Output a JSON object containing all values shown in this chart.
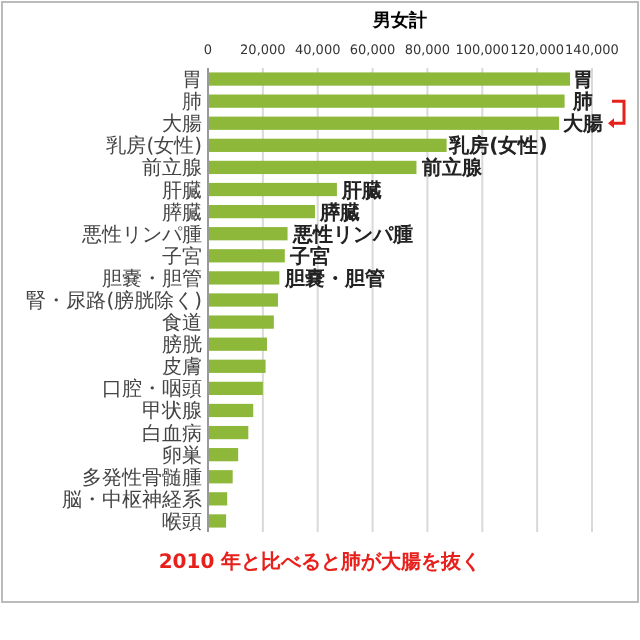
{
  "chart_data": {
    "type": "bar",
    "orientation": "horizontal",
    "title": "男女計",
    "categories": [
      "胃",
      "肺",
      "大腸",
      "乳房(女性)",
      "前立腺",
      "肝臓",
      "膵臓",
      "悪性リンパ腫",
      "子宮",
      "胆嚢・胆管",
      "腎・尿路(膀胱除く)",
      "食道",
      "膀胱",
      "皮膚",
      "口腔・咽頭",
      "甲状腺",
      "白血病",
      "卵巣",
      "多発性骨髄腫",
      "脳・中枢神経系",
      "喉頭"
    ],
    "values": [
      132000,
      130000,
      128000,
      87000,
      76000,
      47000,
      39000,
      29000,
      28000,
      26000,
      25500,
      24000,
      21500,
      21000,
      20000,
      16500,
      14700,
      11000,
      9000,
      7000,
      6600
    ],
    "color": "#8db83a",
    "xlim": [
      0,
      140000
    ],
    "xticks": [
      {
        "value": 0,
        "label": "0"
      },
      {
        "value": 20000,
        "label": "20,000"
      },
      {
        "value": 40000,
        "label": "40,000"
      },
      {
        "value": 60000,
        "label": "60,000"
      },
      {
        "value": 80000,
        "label": "80,000"
      },
      {
        "value": 100000,
        "label": "100,000"
      },
      {
        "value": 120000,
        "label": "120,000"
      },
      {
        "value": 140000,
        "label": "140,000"
      }
    ],
    "grid": "x",
    "annotations": [
      {
        "text": "胃",
        "x": 133000,
        "y": "胃"
      },
      {
        "text": "肺",
        "x": 133000,
        "y": "肺"
      },
      {
        "text": "大腸",
        "x": 129500,
        "y": "大腸"
      },
      {
        "text": "乳房(女性)",
        "x": 88000,
        "y": "乳房(女性)"
      },
      {
        "text": "前立腺",
        "x": 78000,
        "y": "前立腺"
      },
      {
        "text": "肝臓",
        "x": 49000,
        "y": "肝臓"
      },
      {
        "text": "膵臓",
        "x": 41000,
        "y": "膵臓"
      },
      {
        "text": "悪性リンパ腫",
        "x": 31000,
        "y": "悪性リンパ腫"
      },
      {
        "text": "子宮",
        "x": 30000,
        "y": "子宮"
      },
      {
        "text": "胆嚢・胆管",
        "x": 28000,
        "y": "胆嚢・胆管"
      },
      "2010 年と比べると肺が大腸を抜く"
    ]
  }
}
